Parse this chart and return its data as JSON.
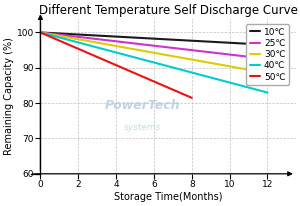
{
  "title": "Different Temperature Self Discharge Curve",
  "xlabel": "Storage Time(Months)",
  "ylabel": "Remaining Capacity (%)",
  "xlim": [
    0,
    13.5
  ],
  "ylim": [
    60,
    104
  ],
  "xticks": [
    0,
    2,
    4,
    6,
    8,
    10,
    12
  ],
  "yticks": [
    60,
    70,
    80,
    90,
    100
  ],
  "series": [
    {
      "label": "10℃",
      "color": "#1a1a1a",
      "x": [
        0,
        12
      ],
      "y": [
        100,
        96.5
      ]
    },
    {
      "label": "25℃",
      "color": "#cc33cc",
      "x": [
        0,
        12
      ],
      "y": [
        100,
        92.5
      ]
    },
    {
      "label": "30℃",
      "color": "#ddcc00",
      "x": [
        0,
        12
      ],
      "y": [
        100,
        88.5
      ]
    },
    {
      "label": "40℃",
      "color": "#00cccc",
      "x": [
        0,
        12
      ],
      "y": [
        100,
        83.0
      ]
    },
    {
      "label": "50℃",
      "color": "#ee1111",
      "x": [
        0,
        8
      ],
      "y": [
        100,
        81.5
      ]
    }
  ],
  "background_color": "#ffffff",
  "watermark1": "PowerTech",
  "watermark2": "systems",
  "watermark_color": "#aac8e0",
  "grid_color": "#bbbbbb",
  "title_fontsize": 8.5,
  "axis_label_fontsize": 7,
  "tick_fontsize": 6.5,
  "legend_fontsize": 6.5,
  "linewidth": 1.5
}
